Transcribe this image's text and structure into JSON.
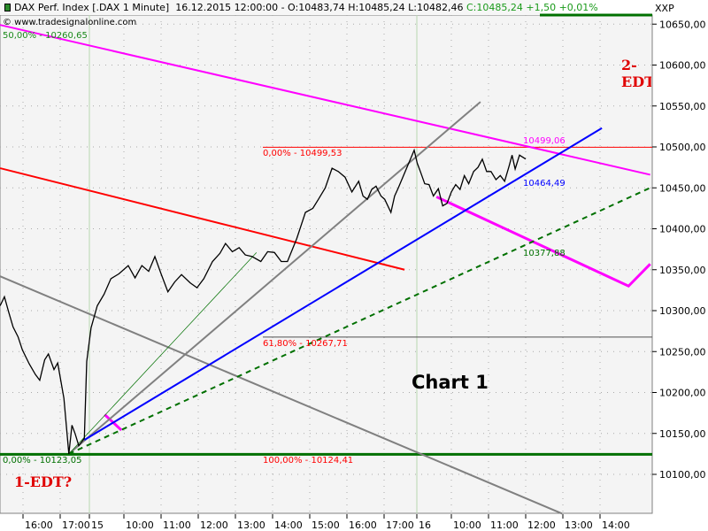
{
  "header": {
    "instrument": "DAX Perf. Index [.DAX  1 Minute]",
    "datetime": "16.12.2015 12:00:00",
    "ohl": "- O:10483,74 H:10485,24 L:10482,46",
    "close": "C:10485,24 +1,50 +0,01%",
    "icon": "candlestick-icon"
  },
  "watermark": "© www.tradesignalonline.com",
  "watermark_overlap": "50,00% - 10260,65",
  "axis_label": "XXP",
  "colors": {
    "price": "#000000",
    "fib": "#ff0000",
    "green": "#007000",
    "blue": "#0000ff",
    "magenta": "#ff00ff",
    "gray": "#808080",
    "background": "#f4f4f4"
  },
  "chart_data": {
    "type": "line",
    "ylim": [
      10050,
      10665
    ],
    "y_ticks": [
      "10650,00",
      "10600,00",
      "10550,00",
      "10500,00",
      "10450,00",
      "10400,00",
      "10350,00",
      "10300,00",
      "10250,00",
      "10200,00",
      "10150,00",
      "10100,00"
    ],
    "y_tick_values": [
      10650,
      10600,
      10550,
      10500,
      10450,
      10400,
      10350,
      10300,
      10250,
      10200,
      10150,
      10100
    ],
    "x_ticks": [
      {
        "t": "14 16:00",
        "label": "16:00"
      },
      {
        "t": "14 17:00",
        "label": "17:00"
      },
      {
        "t": "15 09:00",
        "label": "15",
        "day": true
      },
      {
        "t": "15 10:00",
        "label": "10:00"
      },
      {
        "t": "15 11:00",
        "label": "11:00"
      },
      {
        "t": "15 12:00",
        "label": "12:00"
      },
      {
        "t": "15 13:00",
        "label": "13:00"
      },
      {
        "t": "15 14:00",
        "label": "14:00"
      },
      {
        "t": "15 15:00",
        "label": "15:00"
      },
      {
        "t": "15 16:00",
        "label": "16:00"
      },
      {
        "t": "15 17:00",
        "label": "17:00"
      },
      {
        "t": "16 09:00",
        "label": "16",
        "day": true
      },
      {
        "t": "16 10:00",
        "label": "10:00"
      },
      {
        "t": "16 11:00",
        "label": "11:00"
      },
      {
        "t": "16 12:00",
        "label": "12:00"
      },
      {
        "t": "16 13:00",
        "label": "13:00"
      },
      {
        "t": "16 14:00",
        "label": "14:00"
      }
    ],
    "grid": true,
    "price_series": [
      [
        "14 15:23",
        10306
      ],
      [
        "14 15:30",
        10317
      ],
      [
        "14 15:37",
        10298
      ],
      [
        "14 15:44",
        10280
      ],
      [
        "14 15:52",
        10268
      ],
      [
        "14 15:59",
        10252
      ],
      [
        "14 16:10",
        10235
      ],
      [
        "14 16:20",
        10222
      ],
      [
        "14 16:27",
        10215
      ],
      [
        "14 16:35",
        10240
      ],
      [
        "14 16:41",
        10247
      ],
      [
        "14 16:50",
        10228
      ],
      [
        "14 16:56",
        10236
      ],
      [
        "14 17:06",
        10193
      ],
      [
        "14 17:14",
        10125
      ],
      [
        "14 17:19",
        10160
      ],
      [
        "14 17:24",
        10150
      ],
      [
        "14 17:30",
        10135
      ],
      [
        "14 17:39",
        10144
      ],
      [
        "15 09:00",
        10238
      ],
      [
        "15 09:07",
        10279
      ],
      [
        "15 09:17",
        10306
      ],
      [
        "15 09:28",
        10320
      ],
      [
        "15 09:39",
        10339
      ],
      [
        "15 09:52",
        10345
      ],
      [
        "15 10:07",
        10355
      ],
      [
        "15 10:18",
        10340
      ],
      [
        "15 10:29",
        10355
      ],
      [
        "15 10:40",
        10348
      ],
      [
        "15 10:50",
        10366
      ],
      [
        "15 11:00",
        10345
      ],
      [
        "15 11:11",
        10323
      ],
      [
        "15 11:22",
        10335
      ],
      [
        "15 11:33",
        10344
      ],
      [
        "15 11:47",
        10334
      ],
      [
        "15 11:58",
        10328
      ],
      [
        "15 12:09",
        10339
      ],
      [
        "15 12:23",
        10360
      ],
      [
        "15 12:35",
        10370
      ],
      [
        "15 12:44",
        10382
      ],
      [
        "15 12:55",
        10372
      ],
      [
        "15 13:06",
        10377
      ],
      [
        "15 13:16",
        10368
      ],
      [
        "15 13:27",
        10366
      ],
      [
        "15 13:41",
        10360
      ],
      [
        "15 13:52",
        10372
      ],
      [
        "15 14:03",
        10371
      ],
      [
        "15 14:14",
        10360
      ],
      [
        "15 14:24",
        10360
      ],
      [
        "15 14:39",
        10388
      ],
      [
        "15 14:53",
        10420
      ],
      [
        "15 15:05",
        10425
      ],
      [
        "15 15:14",
        10436
      ],
      [
        "15 15:25",
        10450
      ],
      [
        "15 15:36",
        10474
      ],
      [
        "15 15:46",
        10470
      ],
      [
        "15 15:57",
        10463
      ],
      [
        "15 16:08",
        10445
      ],
      [
        "15 16:19",
        10458
      ],
      [
        "15 16:26",
        10440
      ],
      [
        "15 16:33",
        10436
      ],
      [
        "15 16:40",
        10448
      ],
      [
        "15 16:47",
        10452
      ],
      [
        "15 16:55",
        10440
      ],
      [
        "15 17:01",
        10436
      ],
      [
        "15 17:11",
        10420
      ],
      [
        "15 17:17",
        10440
      ],
      [
        "15 17:23",
        10450
      ],
      [
        "16 09:00",
        10496
      ],
      [
        "16 09:05",
        10480
      ],
      [
        "16 09:10",
        10470
      ],
      [
        "16 09:17",
        10455
      ],
      [
        "16 09:24",
        10454
      ],
      [
        "16 09:31",
        10440
      ],
      [
        "16 09:39",
        10449
      ],
      [
        "16 09:46",
        10428
      ],
      [
        "16 09:53",
        10431
      ],
      [
        "16 10:00",
        10445
      ],
      [
        "16 10:07",
        10454
      ],
      [
        "16 10:14",
        10448
      ],
      [
        "16 10:21",
        10465
      ],
      [
        "16 10:28",
        10455
      ],
      [
        "16 10:36",
        10470
      ],
      [
        "16 10:43",
        10475
      ],
      [
        "16 10:50",
        10485
      ],
      [
        "16 10:57",
        10470
      ],
      [
        "16 11:04",
        10470
      ],
      [
        "16 11:12",
        10460
      ],
      [
        "16 11:19",
        10465
      ],
      [
        "16 11:26",
        10458
      ],
      [
        "16 11:33",
        10476
      ],
      [
        "16 11:38",
        10490
      ],
      [
        "16 11:43",
        10473
      ],
      [
        "16 11:50",
        10490
      ],
      [
        "16 12:00",
        10485.24
      ]
    ],
    "trendlines": [
      {
        "name": "magenta-channel-top",
        "color": "magenta",
        "width": 2,
        "t1": "14 15:23",
        "p1": 10649,
        "t2": "16 15:21",
        "p2": 10466
      },
      {
        "name": "magenta-projection",
        "color": "magenta",
        "width": 3,
        "points": [
          [
            "16 09:36",
            10439
          ],
          [
            "16 14:46",
            10330
          ],
          [
            "16 15:21",
            10357
          ]
        ]
      },
      {
        "name": "magenta-tick",
        "color": "magenta",
        "width": 3,
        "t1": "15 09:29",
        "p1": 10173,
        "t2": "15 09:56",
        "p2": 10154
      },
      {
        "name": "red-descending-line",
        "color": "fib",
        "width": 2,
        "t1": "14 15:23",
        "p1": 10474,
        "t2": "15 17:33",
        "p2": 10350
      },
      {
        "name": "gray-fan-line",
        "color": "gray",
        "width": 2,
        "t1": "14 17:14",
        "p1": 10125,
        "t2": "16 10:47",
        "p2": 10555
      },
      {
        "name": "gray-descending-line",
        "color": "gray",
        "width": 2,
        "t1": "14 15:23",
        "p1": 10342,
        "t2": "16 12:59",
        "p2": 10052
      },
      {
        "name": "green-thin-fan-line",
        "color": "green",
        "width": 0.7,
        "t1": "14 17:14",
        "p1": 10125,
        "t2": "15 13:34",
        "p2": 10371
      },
      {
        "name": "blue-trendline",
        "color": "blue",
        "width": 2,
        "t1": "14 17:39",
        "p1": 10142,
        "t2": "16 14:03",
        "p2": 10523
      },
      {
        "name": "green-dashed-trendline",
        "color": "green",
        "width": 2,
        "dash": true,
        "t1": "14 17:14",
        "p1": 10125,
        "t2": "16 15:21",
        "p2": 10450
      }
    ],
    "fib_levels": [
      {
        "label": "0,00% - 10499,53",
        "price": 10499.53,
        "color": "#ff0000",
        "line": "#ff0000"
      },
      {
        "label": "61,80% - 10267,71",
        "price": 10267.71,
        "color": "#ff0000",
        "line": "#505050"
      },
      {
        "label": "100,00% - 10124,41",
        "price": 10124.41,
        "color": "#ff0000",
        "line": "#007000"
      }
    ],
    "fib_start_label": "0,00% - 10123,05",
    "line_values": [
      {
        "label": "10499,06",
        "color": "#ff00ff",
        "price": 10506
      },
      {
        "label": "10464,49",
        "color": "#0000ff",
        "price": 10455
      },
      {
        "label": "10377,88",
        "color": "#007000",
        "price": 10369
      }
    ]
  },
  "annotations": {
    "edt1": "1-EDT?",
    "edt2": "2-EDT",
    "chart_title": "Chart 1"
  }
}
